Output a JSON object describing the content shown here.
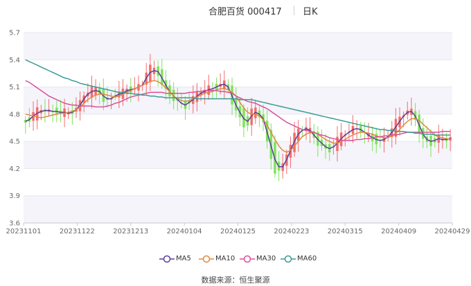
{
  "header": {
    "title": "合肥百货 000417",
    "period": "日K"
  },
  "source": "数据来源：恒生聚源",
  "colors": {
    "up": "#f26d6d",
    "down": "#7ee35b",
    "MA5": "#5b3d99",
    "MA10": "#e08840",
    "MA30": "#d9509a",
    "MA60": "#3a9a92",
    "band": "#f4f4fa",
    "grid": "#e7e7ef"
  },
  "chart_data": {
    "type": "candlestick",
    "title": "合肥百货 000417",
    "ylim": [
      3.6,
      5.7
    ],
    "y_ticks": [
      "3.6",
      "3.9",
      "4.2",
      "4.5",
      "4.8",
      "5.1",
      "5.4",
      "5.7"
    ],
    "x_ticks": [
      "20231101",
      "20231122",
      "20231213",
      "20240104",
      "20240125",
      "20240223",
      "20240315",
      "20240409",
      "20240429"
    ],
    "x_start": "20231101",
    "x_end": "20240429",
    "grid": true,
    "legend_position": "bottom",
    "series": [
      {
        "name": "MA5",
        "color_key": "MA5",
        "values": [
          4.72,
          4.74,
          4.78,
          4.81,
          4.83,
          4.84,
          4.84,
          4.83,
          4.83,
          4.82,
          4.82,
          4.81,
          4.82,
          4.85,
          4.9,
          4.97,
          5.02,
          5.05,
          5.06,
          5.05,
          5.0,
          4.97,
          4.97,
          5.0,
          5.02,
          5.03,
          5.06,
          5.07,
          5.08,
          5.1,
          5.12,
          5.2,
          5.26,
          5.28,
          5.27,
          5.2,
          5.12,
          5.05,
          5.0,
          4.96,
          4.92,
          4.9,
          4.93,
          4.96,
          5.0,
          5.03,
          5.05,
          5.07,
          5.08,
          5.1,
          5.12,
          5.13,
          5.1,
          5.0,
          4.9,
          4.82,
          4.75,
          4.72,
          4.78,
          4.82,
          4.8,
          4.75,
          4.6,
          4.45,
          4.3,
          4.22,
          4.22,
          4.3,
          4.4,
          4.5,
          4.58,
          4.62,
          4.64,
          4.62,
          4.57,
          4.52,
          4.48,
          4.44,
          4.42,
          4.44,
          4.48,
          4.53,
          4.57,
          4.6,
          4.63,
          4.64,
          4.63,
          4.6,
          4.57,
          4.54,
          4.52,
          4.51,
          4.52,
          4.55,
          4.6,
          4.66,
          4.72,
          4.78,
          4.82,
          4.83,
          4.78,
          4.68,
          4.58,
          4.52,
          4.5,
          4.51,
          4.53,
          4.52,
          4.52,
          4.53
        ]
      },
      {
        "name": "MA10",
        "color_key": "MA10",
        "values": [
          4.8,
          4.79,
          4.78,
          4.77,
          4.76,
          4.77,
          4.78,
          4.79,
          4.8,
          4.81,
          4.81,
          4.82,
          4.83,
          4.85,
          4.88,
          4.92,
          4.96,
          4.99,
          5.01,
          5.02,
          5.02,
          5.01,
          5.0,
          4.99,
          5.0,
          5.02,
          5.04,
          5.06,
          5.08,
          5.1,
          5.12,
          5.14,
          5.16,
          5.17,
          5.16,
          5.13,
          5.09,
          5.05,
          5.0,
          4.97,
          4.95,
          4.94,
          4.95,
          4.97,
          4.99,
          5.01,
          5.03,
          5.04,
          5.05,
          5.07,
          5.08,
          5.08,
          5.07,
          5.04,
          5.0,
          4.93,
          4.87,
          4.82,
          4.8,
          4.8,
          4.78,
          4.74,
          4.68,
          4.6,
          4.52,
          4.45,
          4.4,
          4.38,
          4.4,
          4.45,
          4.5,
          4.55,
          4.58,
          4.6,
          4.6,
          4.58,
          4.55,
          4.52,
          4.5,
          4.48,
          4.48,
          4.5,
          4.52,
          4.55,
          4.57,
          4.59,
          4.6,
          4.6,
          4.59,
          4.58,
          4.56,
          4.55,
          4.54,
          4.54,
          4.56,
          4.59,
          4.63,
          4.68,
          4.72,
          4.75,
          4.75,
          4.73,
          4.69,
          4.65,
          4.61,
          4.57,
          4.55,
          4.54,
          4.53,
          4.52
        ]
      },
      {
        "name": "MA30",
        "color_key": "MA30",
        "values": [
          5.17,
          5.15,
          5.12,
          5.09,
          5.06,
          5.03,
          5.0,
          4.98,
          4.96,
          4.94,
          4.92,
          4.91,
          4.9,
          4.9,
          4.89,
          4.89,
          4.89,
          4.89,
          4.88,
          4.88,
          4.88,
          4.89,
          4.9,
          4.92,
          4.93,
          4.95,
          4.97,
          4.99,
          5.0,
          5.01,
          5.02,
          5.03,
          5.04,
          5.04,
          5.04,
          5.04,
          5.03,
          5.03,
          5.03,
          5.03,
          5.03,
          5.03,
          5.04,
          5.04,
          5.05,
          5.05,
          5.06,
          5.06,
          5.06,
          5.06,
          5.05,
          5.05,
          5.04,
          5.03,
          5.0,
          4.98,
          4.96,
          4.94,
          4.93,
          4.92,
          4.9,
          4.88,
          4.86,
          4.83,
          4.8,
          4.77,
          4.74,
          4.71,
          4.69,
          4.67,
          4.65,
          4.63,
          4.62,
          4.61,
          4.6,
          4.58,
          4.57,
          4.56,
          4.54,
          4.53,
          4.52,
          4.51,
          4.51,
          4.51,
          4.51,
          4.52,
          4.52,
          4.53,
          4.53,
          4.54,
          4.55,
          4.55,
          4.56,
          4.56,
          4.57,
          4.57,
          4.58,
          4.59,
          4.6,
          4.6,
          4.6,
          4.6,
          4.6,
          4.6,
          4.6,
          4.6,
          4.6,
          4.61,
          4.61,
          4.61
        ]
      },
      {
        "name": "MA60",
        "color_key": "MA60",
        "values": [
          5.4,
          5.38,
          5.36,
          5.34,
          5.32,
          5.3,
          5.28,
          5.26,
          5.24,
          5.22,
          5.2,
          5.19,
          5.17,
          5.16,
          5.14,
          5.13,
          5.12,
          5.11,
          5.1,
          5.09,
          5.08,
          5.07,
          5.06,
          5.05,
          5.04,
          5.04,
          5.03,
          5.03,
          5.02,
          5.02,
          5.01,
          5.01,
          5.0,
          5.0,
          4.99,
          4.99,
          4.98,
          4.98,
          4.98,
          4.98,
          4.98,
          4.98,
          4.98,
          4.98,
          4.97,
          4.97,
          4.97,
          4.97,
          4.97,
          4.97,
          4.97,
          4.97,
          4.97,
          4.97,
          4.97,
          4.96,
          4.96,
          4.96,
          4.96,
          4.95,
          4.94,
          4.93,
          4.92,
          4.91,
          4.9,
          4.89,
          4.88,
          4.87,
          4.86,
          4.85,
          4.84,
          4.83,
          4.82,
          4.81,
          4.8,
          4.79,
          4.78,
          4.77,
          4.76,
          4.75,
          4.74,
          4.73,
          4.72,
          4.71,
          4.7,
          4.69,
          4.68,
          4.67,
          4.66,
          4.65,
          4.64,
          4.63,
          4.63,
          4.62,
          4.62,
          4.61,
          4.61,
          4.61,
          4.6,
          4.6,
          4.59,
          4.59,
          4.58,
          4.58,
          4.58,
          4.57,
          4.57,
          4.57,
          4.57,
          4.57
        ]
      }
    ]
  }
}
